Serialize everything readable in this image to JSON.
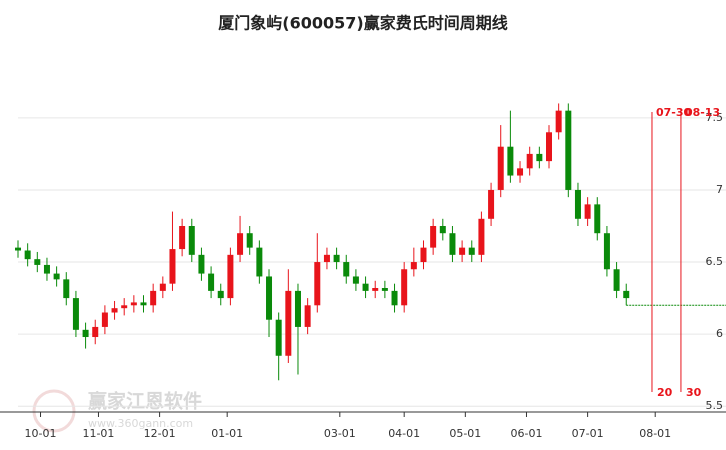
{
  "chart_data": {
    "type": "candlestick",
    "title": "厦门象屿(600057)赢家费氏时间周期线",
    "watermark": [
      "赢家江恩软件",
      "www.360gann.com"
    ],
    "x": [
      0,
      3,
      6,
      9,
      12,
      15,
      18,
      21,
      24,
      27,
      30,
      33,
      36,
      39,
      42,
      45,
      48,
      51,
      54,
      57,
      60,
      63,
      66,
      69,
      72,
      75,
      78,
      81,
      84,
      87,
      90,
      93,
      96,
      99,
      102,
      105,
      108,
      111,
      114,
      117,
      120,
      123,
      126,
      129,
      132,
      135,
      138,
      141,
      144,
      147,
      150,
      153,
      156,
      159,
      162,
      165,
      168,
      171,
      174,
      177,
      180,
      183,
      186,
      189
    ],
    "open": [
      6.6,
      6.58,
      6.52,
      6.48,
      6.42,
      6.38,
      6.25,
      6.03,
      5.98,
      6.05,
      6.15,
      6.18,
      6.2,
      6.22,
      6.2,
      6.3,
      6.35,
      6.59,
      6.75,
      6.55,
      6.42,
      6.3,
      6.25,
      6.55,
      6.7,
      6.6,
      6.4,
      6.1,
      5.85,
      6.3,
      6.05,
      6.2,
      6.5,
      6.55,
      6.5,
      6.4,
      6.35,
      6.3,
      6.32,
      6.3,
      6.2,
      6.45,
      6.5,
      6.6,
      6.75,
      6.7,
      6.55,
      6.6,
      6.55,
      6.8,
      7.0,
      7.3,
      7.1,
      7.15,
      7.25,
      7.2,
      7.4,
      7.55,
      7.0,
      6.8,
      6.9,
      6.7,
      6.45,
      6.3
    ],
    "high": [
      6.65,
      6.63,
      6.57,
      6.53,
      6.47,
      6.43,
      6.3,
      6.08,
      6.1,
      6.2,
      6.23,
      6.25,
      6.27,
      6.27,
      6.35,
      6.4,
      6.85,
      6.8,
      6.8,
      6.6,
      6.47,
      6.35,
      6.6,
      6.82,
      6.75,
      6.65,
      6.45,
      6.15,
      6.45,
      6.35,
      6.25,
      6.7,
      6.6,
      6.6,
      6.55,
      6.45,
      6.4,
      6.37,
      6.37,
      6.35,
      6.5,
      6.6,
      6.65,
      6.8,
      6.8,
      6.75,
      6.65,
      6.65,
      6.85,
      7.05,
      7.45,
      7.55,
      7.2,
      7.3,
      7.3,
      7.45,
      7.6,
      7.6,
      7.05,
      6.95,
      6.95,
      6.75,
      6.5,
      6.35
    ],
    "low": [
      6.53,
      6.47,
      6.43,
      6.37,
      6.33,
      6.2,
      5.98,
      5.9,
      5.93,
      6.0,
      6.1,
      6.13,
      6.15,
      6.15,
      6.15,
      6.25,
      6.3,
      6.54,
      6.5,
      6.37,
      6.25,
      6.2,
      6.2,
      6.5,
      6.55,
      6.35,
      5.98,
      5.68,
      5.8,
      5.72,
      6.0,
      6.15,
      6.45,
      6.45,
      6.35,
      6.3,
      6.25,
      6.25,
      6.25,
      6.15,
      6.15,
      6.4,
      6.45,
      6.55,
      6.65,
      6.5,
      6.5,
      6.5,
      6.5,
      6.75,
      6.95,
      7.05,
      7.05,
      7.1,
      7.15,
      7.15,
      7.35,
      6.95,
      6.75,
      6.75,
      6.65,
      6.4,
      6.25,
      6.2
    ],
    "close": [
      6.58,
      6.52,
      6.48,
      6.42,
      6.38,
      6.25,
      6.03,
      5.98,
      6.05,
      6.15,
      6.18,
      6.2,
      6.22,
      6.2,
      6.3,
      6.35,
      6.59,
      6.75,
      6.55,
      6.42,
      6.3,
      6.25,
      6.55,
      6.7,
      6.6,
      6.4,
      6.1,
      5.85,
      6.3,
      6.05,
      6.2,
      6.5,
      6.55,
      6.5,
      6.4,
      6.35,
      6.3,
      6.32,
      6.3,
      6.2,
      6.45,
      6.5,
      6.6,
      6.75,
      6.7,
      6.55,
      6.6,
      6.55,
      6.8,
      7.0,
      7.3,
      7.1,
      7.15,
      7.25,
      7.2,
      7.4,
      7.55,
      7.0,
      6.8,
      6.9,
      6.7,
      6.45,
      6.3,
      6.25
    ],
    "up_color": "#e8141b",
    "down_color": "#0a8a0a",
    "xlim": [
      0,
      220
    ],
    "ylim": [
      5.46,
      8.04
    ],
    "xticks": [
      {
        "value": 7,
        "label": "10-01"
      },
      {
        "value": 25,
        "label": "11-01"
      },
      {
        "value": 44,
        "label": "12-01"
      },
      {
        "value": 65,
        "label": "01-01"
      },
      {
        "value": 100,
        "label": "03-01"
      },
      {
        "value": 120,
        "label": "04-01"
      },
      {
        "value": 139,
        "label": "05-01"
      },
      {
        "value": 158,
        "label": "06-01"
      },
      {
        "value": 177,
        "label": "07-01"
      },
      {
        "value": 198,
        "label": "08-01"
      }
    ],
    "yticks": [
      5.5,
      6,
      6.5,
      7,
      7.5
    ],
    "grid": true,
    "reference_line": {
      "value": 6.2,
      "color": "#0a8a0a"
    },
    "cycle_lines": [
      {
        "x": 197,
        "label": "07-30",
        "count": 20
      },
      {
        "x": 206,
        "label": "08-13",
        "count": 30
      }
    ],
    "cycle_color": "#e8141b"
  }
}
